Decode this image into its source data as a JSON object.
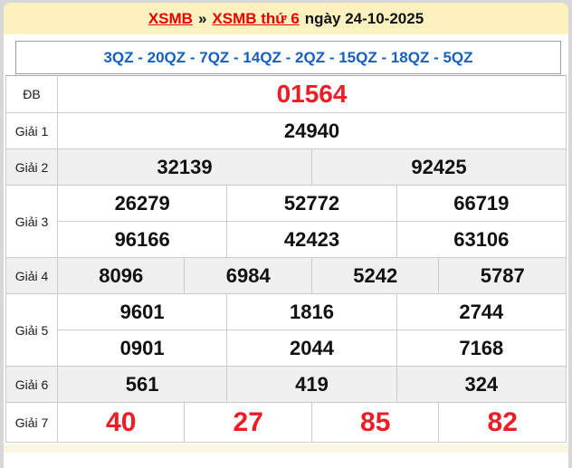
{
  "header": {
    "link_home": "XSMB",
    "separator": "»",
    "link_day": "XSMB thứ 6",
    "date_text": "ngày 24-10-2025"
  },
  "summary_line": "3QZ - 20QZ - 7QZ - 14QZ - 2QZ - 15QZ - 18QZ - 5QZ",
  "results": [
    {
      "label": "ĐB",
      "rows": [
        [
          "01564"
        ]
      ]
    },
    {
      "label": "Giải 1",
      "rows": [
        [
          "24940"
        ]
      ]
    },
    {
      "label": "Giải 2",
      "rows": [
        [
          "32139",
          "92425"
        ]
      ]
    },
    {
      "label": "Giải 3",
      "rows": [
        [
          "26279",
          "52772",
          "66719"
        ],
        [
          "96166",
          "42423",
          "63106"
        ]
      ]
    },
    {
      "label": "Giải 4",
      "rows": [
        [
          "8096",
          "6984",
          "5242",
          "5787"
        ]
      ]
    },
    {
      "label": "Giải 5",
      "rows": [
        [
          "9601",
          "1816",
          "2744"
        ],
        [
          "0901",
          "2044",
          "7168"
        ]
      ]
    },
    {
      "label": "Giải 6",
      "rows": [
        [
          "561",
          "419",
          "324"
        ]
      ]
    },
    {
      "label": "Giải 7",
      "rows": [
        [
          "40",
          "27",
          "85",
          "82"
        ]
      ]
    }
  ],
  "colors": {
    "banner_bg": "#fdf1c0",
    "accent_red": "#e60000",
    "number_red": "#ee1c25",
    "accent_blue": "#1560bd",
    "shaded_row": "#f0f0f0",
    "bottom_strip": "#fbf6e0"
  }
}
